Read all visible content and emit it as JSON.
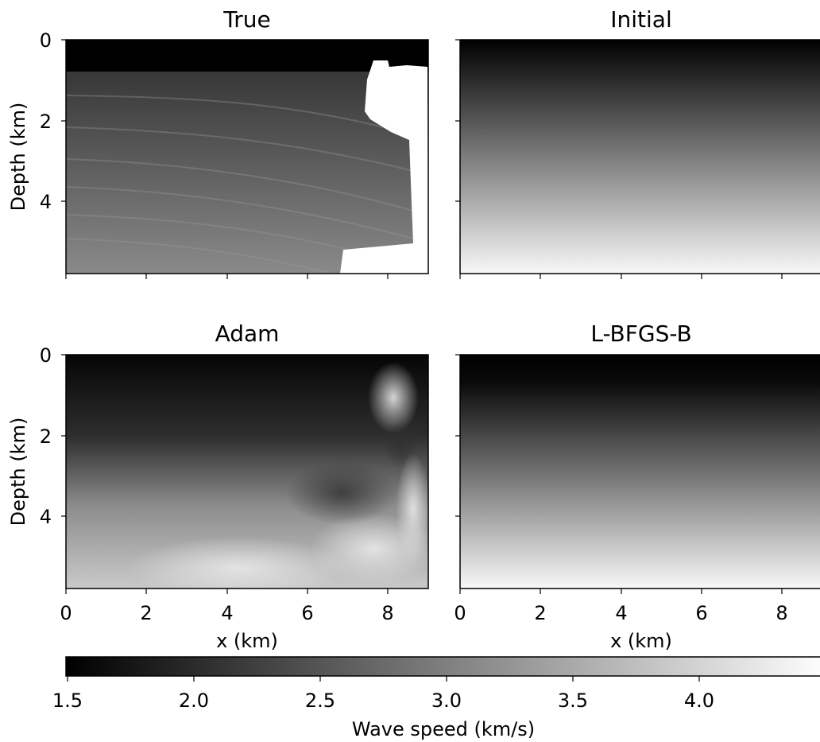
{
  "chart_data": [
    {
      "type": "heatmap",
      "title": "True",
      "xlabel": "",
      "ylabel": "Depth (km)",
      "xlim": [
        0,
        9
      ],
      "ylim": [
        5.8,
        0
      ],
      "x_ticks": [
        0,
        2,
        4,
        6,
        8
      ],
      "y_ticks": [
        0,
        2,
        4
      ],
      "x_tick_labels_visible": false,
      "y_tick_labels_visible": true,
      "description_values": {
        "water_layer_depth_km": 0.8,
        "water_speed_km_s": 1.5,
        "sediment_speed_range_km_s": [
          1.8,
          3.2
        ],
        "salt_body_speed_km_s": 4.5,
        "salt_body_x_range_km": [
          7.0,
          9.0
        ]
      }
    },
    {
      "type": "heatmap",
      "title": "Initial",
      "xlabel": "",
      "ylabel": "",
      "xlim": [
        0,
        9
      ],
      "ylim": [
        5.8,
        0
      ],
      "x_ticks": [
        0,
        2,
        4,
        6,
        8
      ],
      "y_ticks": [
        0,
        2,
        4
      ],
      "x_tick_labels_visible": false,
      "y_tick_labels_visible": false,
      "description_values": {
        "speed_top_km_s": 1.5,
        "speed_bottom_km_s": 4.5,
        "gradient": "linear with depth"
      }
    },
    {
      "type": "heatmap",
      "title": "Adam",
      "xlabel": "x (km)",
      "ylabel": "Depth (km)",
      "xlim": [
        0,
        9
      ],
      "ylim": [
        5.8,
        0
      ],
      "x_ticks": [
        0,
        2,
        4,
        6,
        8
      ],
      "y_ticks": [
        0,
        2,
        4
      ],
      "x_tick_labels_visible": true,
      "y_tick_labels_visible": true
    },
    {
      "type": "heatmap",
      "title": "L-BFGS-B",
      "xlabel": "x (km)",
      "ylabel": "",
      "xlim": [
        0,
        9
      ],
      "ylim": [
        5.8,
        0
      ],
      "x_ticks": [
        0,
        2,
        4,
        6,
        8
      ],
      "y_ticks": [
        0,
        2,
        4
      ],
      "x_tick_labels_visible": true,
      "y_tick_labels_visible": false
    }
  ],
  "colorbar": {
    "label": "Wave speed (km/s)",
    "range": [
      1.5,
      4.5
    ],
    "ticks": [
      1.5,
      2.0,
      2.5,
      3.0,
      3.5,
      4.0
    ],
    "tick_labels": [
      "1.5",
      "2.0",
      "2.5",
      "3.0",
      "3.5",
      "4.0"
    ],
    "colormap": "gray"
  }
}
